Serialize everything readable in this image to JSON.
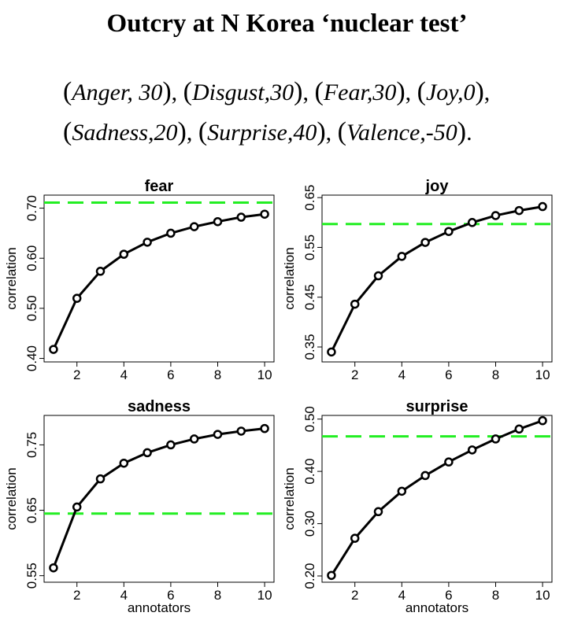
{
  "headline": "Outcry at N Korea ‘nuclear test’",
  "score_lines": [
    [
      {
        "name": "Anger",
        "sep": ", ",
        "value": "30",
        "after": ", "
      },
      {
        "name": "Disgust",
        "sep": ",",
        "value": "30",
        "after": ", "
      },
      {
        "name": "Fear",
        "sep": ",",
        "value": "30",
        "after": ", "
      },
      {
        "name": "Joy",
        "sep": ",",
        "value": "0",
        "after": ","
      }
    ],
    [
      {
        "name": "Sadness",
        "sep": ",",
        "value": "20",
        "after": ", "
      },
      {
        "name": "Surprise",
        "sep": ",",
        "value": "40",
        "after": ", "
      },
      {
        "name": "Valence",
        "sep": ",",
        "value": "-50",
        "after": "."
      }
    ]
  ],
  "colors": {
    "line": "#000000",
    "reference": "#22ee22"
  },
  "chart_data": [
    {
      "type": "line",
      "title": "fear",
      "xlabel": "",
      "ylabel": "correlation",
      "x": [
        1,
        2,
        3,
        4,
        5,
        6,
        7,
        8,
        9,
        10
      ],
      "values": [
        0.418,
        0.52,
        0.574,
        0.608,
        0.632,
        0.65,
        0.663,
        0.673,
        0.682,
        0.688
      ],
      "reference_line": 0.711,
      "xlim": [
        0.6,
        10.4
      ],
      "ylim": [
        0.393,
        0.726
      ],
      "xticks": [
        2,
        4,
        6,
        8,
        10
      ],
      "yticks": [
        0.4,
        0.5,
        0.6,
        0.7
      ],
      "ytick_labels": [
        "0.40",
        "0.50",
        "0.60",
        "0.70"
      ],
      "grid": false
    },
    {
      "type": "line",
      "title": "joy",
      "xlabel": "",
      "ylabel": "correlation",
      "x": [
        1,
        2,
        3,
        4,
        5,
        6,
        7,
        8,
        9,
        10
      ],
      "values": [
        0.34,
        0.436,
        0.493,
        0.532,
        0.56,
        0.582,
        0.6,
        0.614,
        0.624,
        0.632
      ],
      "reference_line": 0.597,
      "xlim": [
        0.6,
        10.4
      ],
      "ylim": [
        0.32,
        0.655
      ],
      "xticks": [
        2,
        4,
        6,
        8,
        10
      ],
      "yticks": [
        0.35,
        0.45,
        0.55,
        0.65
      ],
      "ytick_labels": [
        "0.35",
        "0.45",
        "0.55",
        "0.65"
      ],
      "grid": false
    },
    {
      "type": "line",
      "title": "sadness",
      "xlabel": "annotators",
      "ylabel": "correlation",
      "x": [
        1,
        2,
        3,
        4,
        5,
        6,
        7,
        8,
        9,
        10
      ],
      "values": [
        0.562,
        0.655,
        0.698,
        0.722,
        0.738,
        0.75,
        0.759,
        0.766,
        0.771,
        0.775
      ],
      "reference_line": 0.645,
      "xlim": [
        0.6,
        10.4
      ],
      "ylim": [
        0.54,
        0.795
      ],
      "xticks": [
        2,
        4,
        6,
        8,
        10
      ],
      "yticks": [
        0.55,
        0.65,
        0.75
      ],
      "ytick_labels": [
        "0.55",
        "0.65",
        "0.75"
      ],
      "grid": false
    },
    {
      "type": "line",
      "title": "surprise",
      "xlabel": "annotators",
      "ylabel": "correlation",
      "x": [
        1,
        2,
        3,
        4,
        5,
        6,
        7,
        8,
        9,
        10
      ],
      "values": [
        0.201,
        0.272,
        0.323,
        0.362,
        0.392,
        0.418,
        0.441,
        0.462,
        0.481,
        0.497
      ],
      "reference_line": 0.467,
      "xlim": [
        0.6,
        10.4
      ],
      "ylim": [
        0.188,
        0.507
      ],
      "xticks": [
        2,
        4,
        6,
        8,
        10
      ],
      "yticks": [
        0.2,
        0.3,
        0.4,
        0.5
      ],
      "ytick_labels": [
        "0.20",
        "0.30",
        "0.40",
        "0.50"
      ],
      "grid": false
    }
  ]
}
